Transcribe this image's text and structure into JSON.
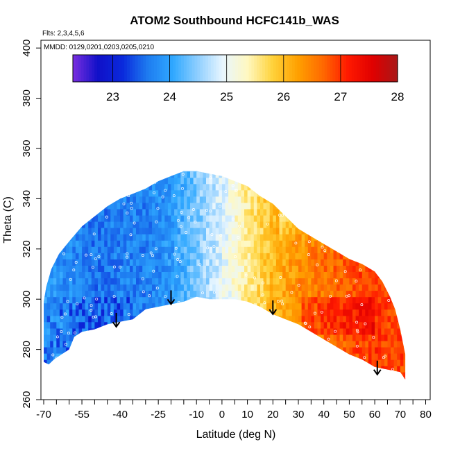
{
  "chart_data": {
    "type": "heatmap",
    "title": "ATOM2 Southbound HCFC141b_WAS",
    "subtitle_lines": [
      "Flts: 2,3,4,5,6",
      "MMDD: 0129,0201,0203,0205,0210"
    ],
    "xlabel": "Latitude (deg N)",
    "ylabel": "Theta (C)",
    "xlim": [
      -70,
      80
    ],
    "ylim": [
      260,
      400
    ],
    "x_tick_labels": [
      "-70",
      "-55",
      "-40",
      "-25",
      "-10",
      "0",
      "10",
      "20",
      "30",
      "40",
      "50",
      "60",
      "70",
      "80"
    ],
    "x_tick_values": [
      -70,
      -55,
      -40,
      -25,
      -10,
      0,
      10,
      20,
      30,
      40,
      50,
      60,
      70,
      80
    ],
    "x_minor_ticks": [
      -65,
      -60,
      -50,
      -45,
      -35,
      -30,
      -20,
      -15,
      -5,
      5,
      15,
      25,
      35,
      45,
      55,
      65,
      75
    ],
    "y_tick_labels": [
      "260",
      "280",
      "300",
      "320",
      "340",
      "360",
      "380",
      "400"
    ],
    "y_tick_values": [
      260,
      280,
      300,
      320,
      340,
      360,
      380,
      400
    ],
    "colorbar": {
      "range": [
        22.3,
        28.0
      ],
      "tick_labels": [
        "23",
        "24",
        "25",
        "26",
        "27",
        "28"
      ],
      "tick_values": [
        23,
        24,
        25,
        26,
        27,
        28
      ],
      "colors": [
        "#7a2fe0",
        "#1010c8",
        "#0a2adc",
        "#1e7cf0",
        "#2fa8ff",
        "#8fcfff",
        "#e8f6ff",
        "#fff8c0",
        "#ffd23a",
        "#ffa000",
        "#ff6a00",
        "#ff1a00",
        "#e00000",
        "#a81818"
      ]
    },
    "arrows_at": [
      {
        "x": -41.5,
        "y": 289
      },
      {
        "x": -20,
        "y": 298
      },
      {
        "x": 20,
        "y": 294
      },
      {
        "x": 61,
        "y": 270
      }
    ],
    "field_profile": {
      "latitudes": [
        -68,
        -60,
        -50,
        -40,
        -30,
        -20,
        -10,
        0,
        10,
        20,
        30,
        40,
        50,
        60,
        70
      ],
      "values": [
        23.9,
        23.8,
        23.6,
        23.7,
        23.7,
        23.9,
        24.4,
        24.9,
        25.5,
        26.0,
        26.4,
        26.6,
        26.8,
        27.0,
        26.9
      ]
    }
  }
}
